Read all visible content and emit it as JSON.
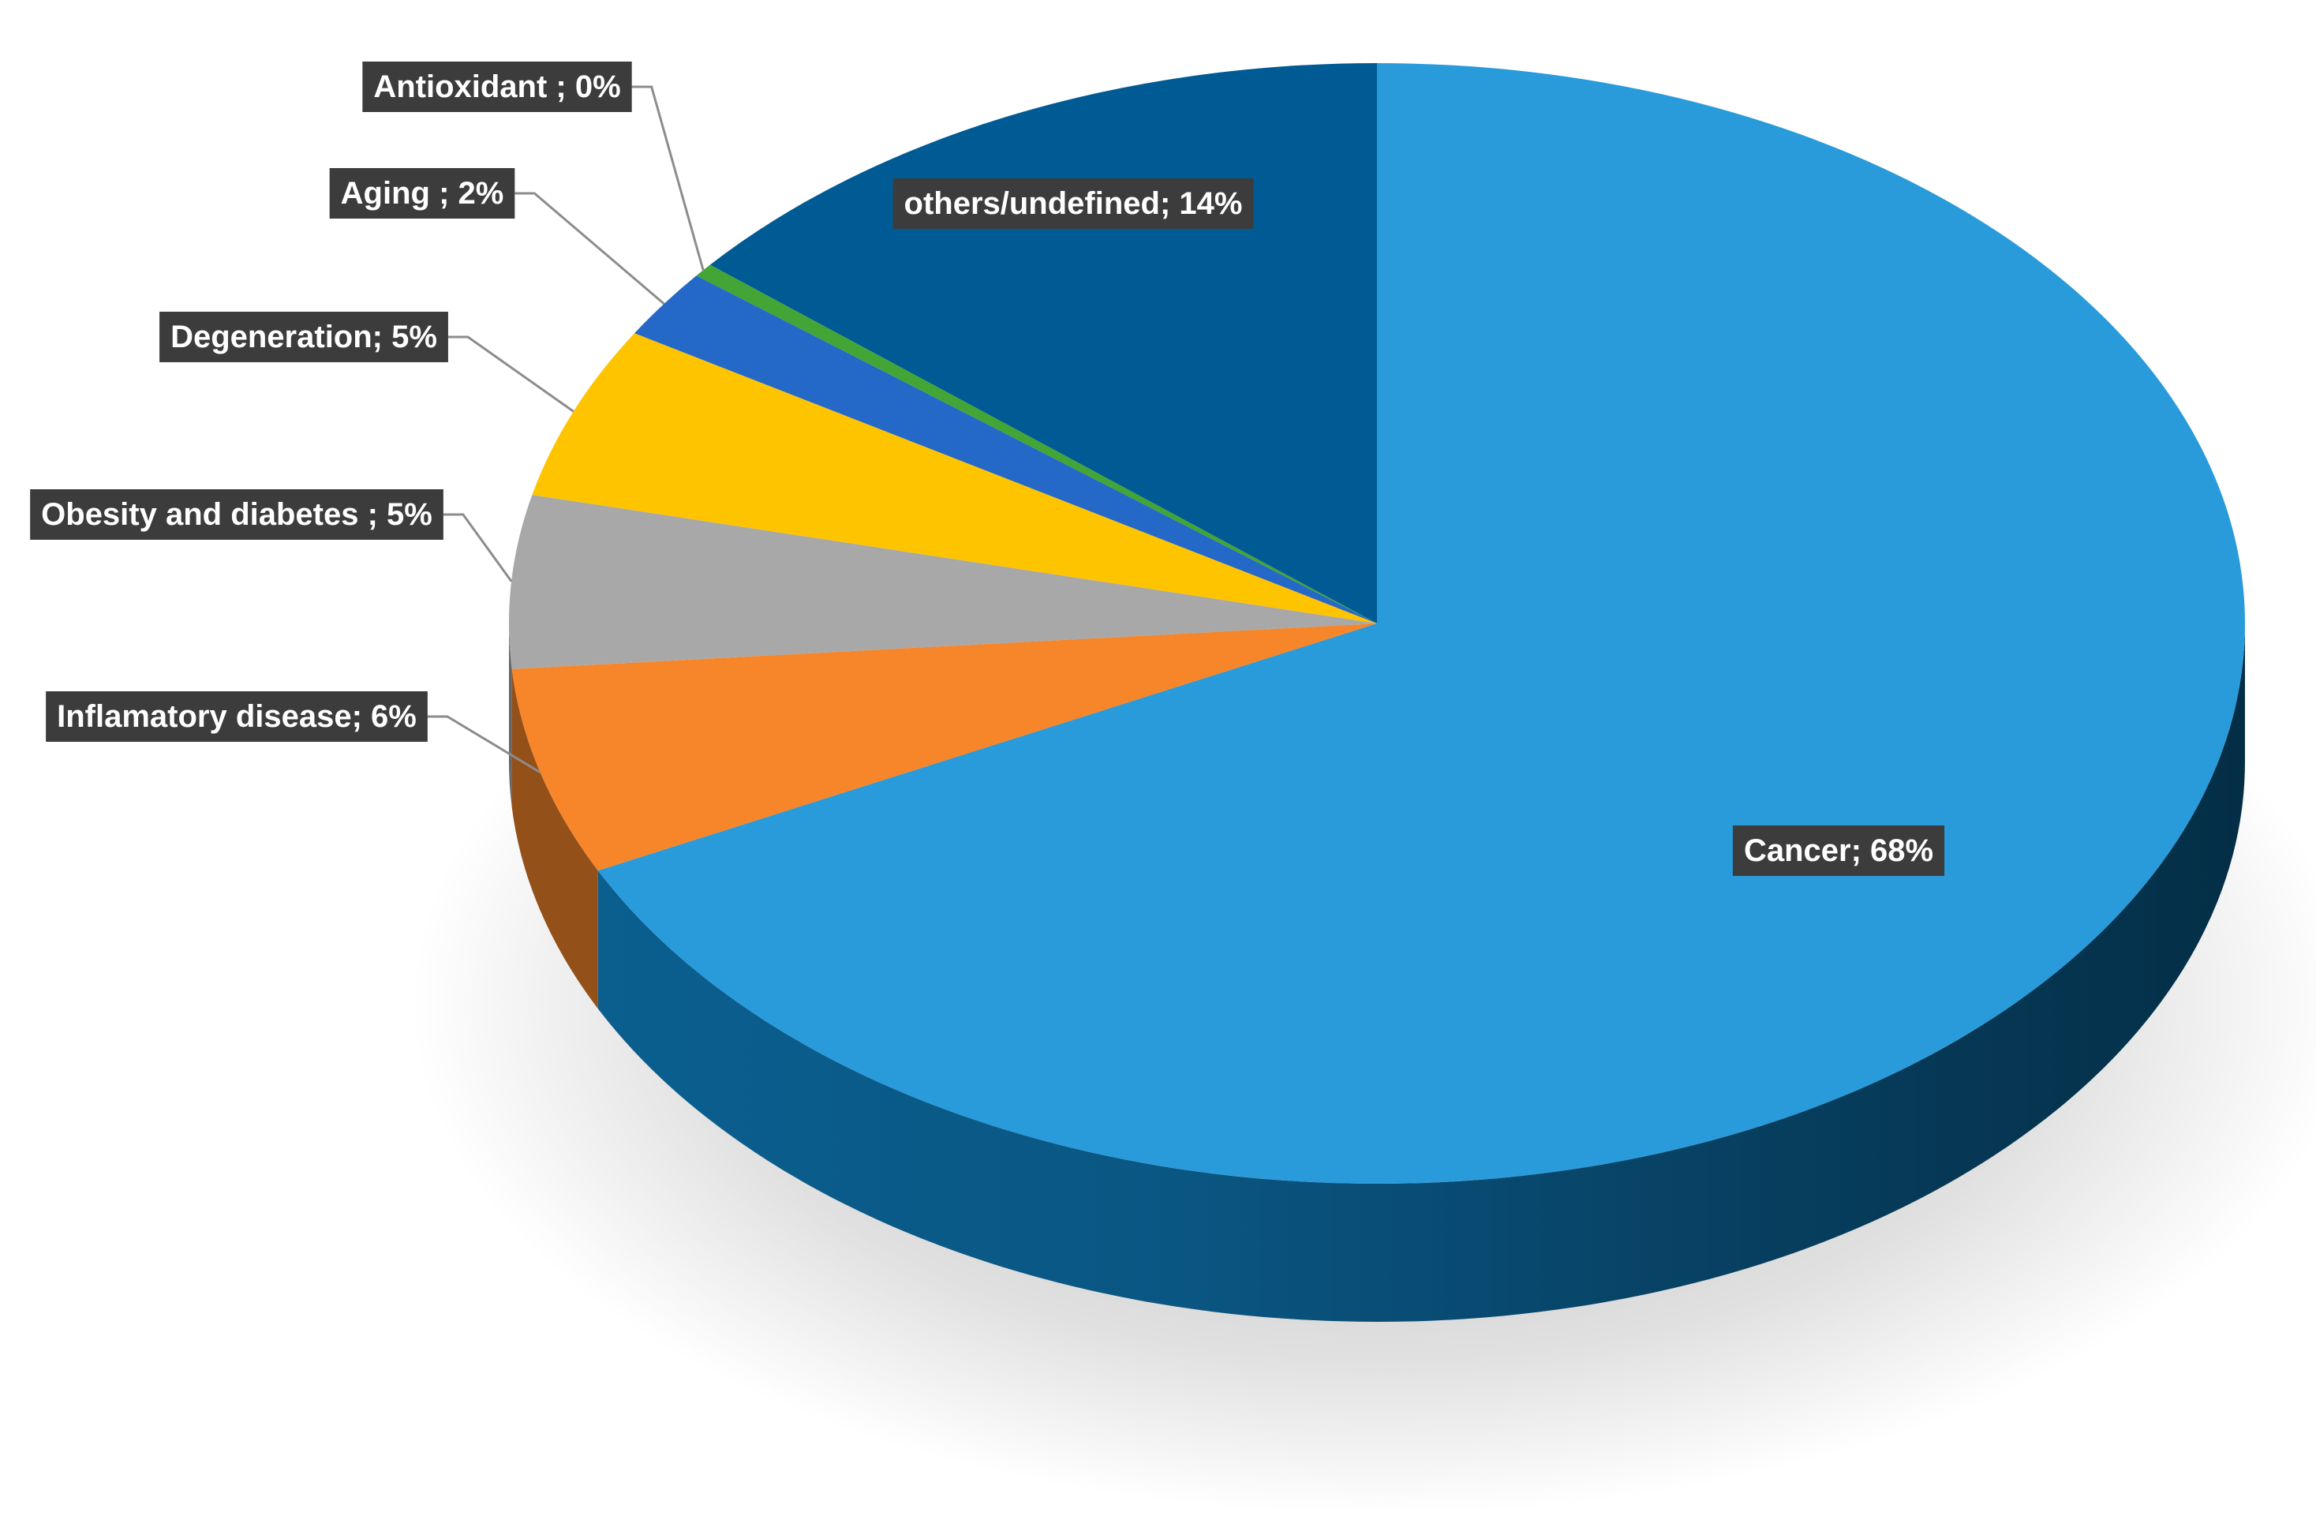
{
  "chart_data": {
    "type": "pie",
    "style": "3d",
    "title": "",
    "slices": [
      {
        "name": "Cancer",
        "value": 68,
        "label": "Cancer; 68%",
        "color": "#2A9BDA"
      },
      {
        "name": "Inflamatory disease",
        "value": 6,
        "label": "Inflamatory disease; 6%",
        "color": "#F7862A"
      },
      {
        "name": "Obesity and diabetes",
        "value": 5,
        "label": "Obesity and diabetes ; 5%",
        "color": "#A8A8A8"
      },
      {
        "name": "Degeneration",
        "value": 5,
        "label": "Degeneration; 5%",
        "color": "#FFC400"
      },
      {
        "name": "Aging",
        "value": 2,
        "label": "Aging ; 2%",
        "color": "#2468C8"
      },
      {
        "name": "Antioxidant",
        "value": 0.4,
        "label": "Antioxidant ; 0%",
        "color": "#43A535"
      },
      {
        "name": "others/undefined",
        "value": 14,
        "label": "others/undefined; 14%",
        "color": "#005B94"
      }
    ],
    "label_box_color": "#3C3C3C",
    "leader_line_color": "#8C8C8C"
  }
}
